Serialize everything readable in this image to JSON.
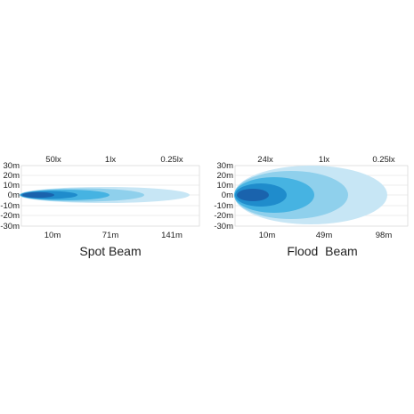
{
  "diagrams": [
    {
      "caption": "Spot Beam",
      "lux_labels": [
        "50lx",
        "1lx",
        "0.25lx"
      ],
      "distance_labels": [
        "10m",
        "71m",
        "141m"
      ],
      "y_labels": [
        "30m",
        "20m",
        "10m",
        "0m",
        "-10m",
        "-20m",
        "-30m"
      ],
      "beam_colors": [
        "#c7e6f5",
        "#8fd0ec",
        "#46b3e2",
        "#1f8ccc",
        "#1a63ad"
      ]
    },
    {
      "caption": "Flood  Beam",
      "lux_labels": [
        "24lx",
        "1lx",
        "0.25lx"
      ],
      "distance_labels": [
        "10m",
        "49m",
        "98m"
      ],
      "y_labels": [
        "30m",
        "20m",
        "10m",
        "0m",
        "-10m",
        "-20m",
        "-30m"
      ],
      "beam_colors": [
        "#c7e6f5",
        "#8fd0ec",
        "#46b3e2",
        "#1f8ccc",
        "#1a63ad"
      ]
    }
  ]
}
